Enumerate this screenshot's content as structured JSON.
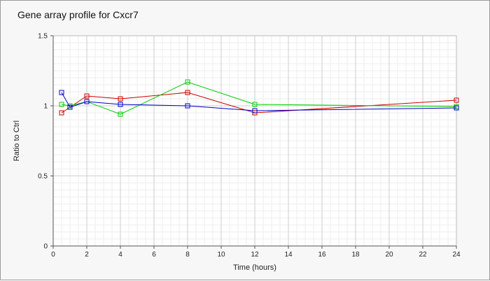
{
  "chart_data": {
    "type": "line",
    "title": "Gene array profile for Cxcr7",
    "xlabel": "Time (hours)",
    "ylabel": "Ratio to Ctrl",
    "xlim": [
      0,
      24
    ],
    "ylim": [
      0,
      1.5
    ],
    "x_ticks": [
      "0",
      "2",
      "4",
      "6",
      "8",
      "10",
      "12",
      "14",
      "16",
      "18",
      "20",
      "22",
      "24"
    ],
    "y_ticks": [
      "0",
      "0.5",
      "1",
      "1.5"
    ],
    "grid": true,
    "legend": "none",
    "series": [
      {
        "color": "#cc0000",
        "marker": "square",
        "x": [
          0.5,
          1,
          2,
          4,
          8,
          12,
          24
        ],
        "y": [
          0.95,
          0.99,
          1.07,
          1.05,
          1.095,
          0.95,
          1.04
        ]
      },
      {
        "color": "#00cc00",
        "marker": "square",
        "x": [
          0.5,
          1,
          2,
          4,
          8,
          12,
          24
        ],
        "y": [
          1.01,
          1.0,
          1.03,
          0.94,
          1.17,
          1.01,
          0.995
        ]
      },
      {
        "color": "#0000cc",
        "marker": "square",
        "x": [
          0.5,
          1,
          2,
          4,
          8,
          12,
          24
        ],
        "y": [
          1.095,
          0.99,
          1.03,
          1.01,
          1.0,
          0.965,
          0.985
        ]
      }
    ]
  }
}
